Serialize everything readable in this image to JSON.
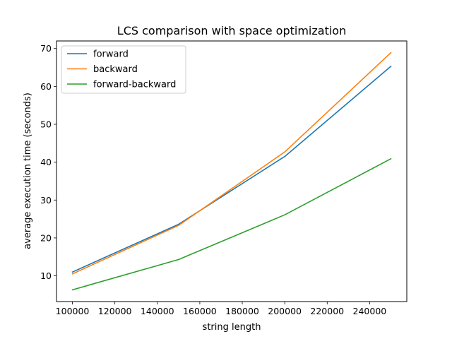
{
  "chart_data": {
    "type": "line",
    "title": "LCS comparison with space optimization",
    "xlabel": "string length",
    "ylabel": "average execution time (seconds)",
    "x": [
      100000,
      150000,
      200000,
      250000
    ],
    "xlim": [
      92500,
      257500
    ],
    "ylim": [
      3.2,
      72.0
    ],
    "xticks": [
      100000,
      120000,
      140000,
      160000,
      180000,
      200000,
      220000,
      240000
    ],
    "yticks": [
      10,
      20,
      30,
      40,
      50,
      60,
      70
    ],
    "grid": false,
    "legend_position": "top-left",
    "series": [
      {
        "name": "forward",
        "color": "#1f77b4",
        "values": [
          11.0,
          23.6,
          41.5,
          65.3
        ]
      },
      {
        "name": "backward",
        "color": "#ff7f0e",
        "values": [
          10.5,
          23.3,
          42.7,
          68.9
        ]
      },
      {
        "name": "forward-backward",
        "color": "#2ca02c",
        "values": [
          6.3,
          14.3,
          26.1,
          40.9
        ]
      }
    ]
  }
}
